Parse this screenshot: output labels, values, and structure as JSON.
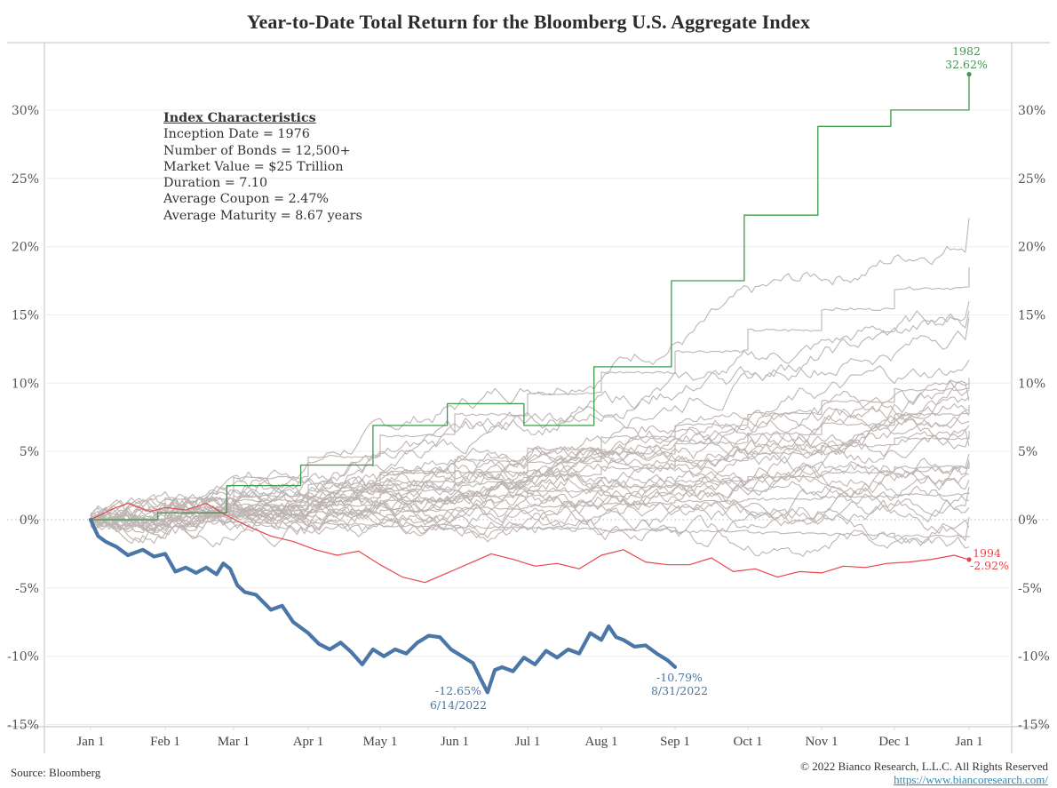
{
  "title": "Year-to-Date Total Return for the Bloomberg U.S. Aggregate Index",
  "info_box": {
    "heading": "Index Characteristics",
    "lines": [
      "Inception Date = 1976",
      "Number of Bonds = 12,500+",
      "Market Value = $25 Trillion",
      "Duration = 7.10",
      "Average Coupon = 2.47%",
      "Average Maturity = 8.67 years"
    ]
  },
  "footer": {
    "source": "Source: Bloomberg",
    "copyright": "© 2022 Bianco Research, L.L.C. All Rights Reserved",
    "url": "https://www.biancoresearch.com/"
  },
  "colors": {
    "highlight_2022": "#4a76a8",
    "year_1982": "#3c9a4a",
    "year_1994": "#e8464a",
    "other_years": "#bdb5b2",
    "grid": "#ececec",
    "axis": "#cccccc"
  },
  "chart_data": {
    "type": "line",
    "title": "Year-to-Date Total Return for the Bloomberg U.S. Aggregate Index",
    "xlabel": "",
    "ylabel": "",
    "x_ticks": [
      "Jan 1",
      "Feb 1",
      "Mar 1",
      "Apr 1",
      "May 1",
      "Jun 1",
      "Jul 1",
      "Aug 1",
      "Sep 1",
      "Oct 1",
      "Nov 1",
      "Dec 1",
      "Jan 1"
    ],
    "x_range_months": [
      0,
      12
    ],
    "y_ticks": [
      "30%",
      "25%",
      "20%",
      "15%",
      "10%",
      "5%",
      "0%",
      "-5%",
      "-10%",
      "-15%"
    ],
    "y_tick_values": [
      30,
      25,
      20,
      15,
      10,
      5,
      0,
      -5,
      -10,
      -15
    ],
    "ylim": [
      -15.5,
      34.5
    ],
    "grid": "horizontal",
    "y_axis_both_sides": true,
    "x_unit": "months since Jan 1",
    "series": [
      {
        "name": "2022",
        "style": "highlight",
        "x": [
          0,
          0.1,
          0.2,
          0.35,
          0.5,
          0.7,
          0.85,
          1.0,
          1.15,
          1.3,
          1.45,
          1.6,
          1.75,
          1.85,
          1.95,
          2.05,
          2.15,
          2.3,
          2.5,
          2.65,
          2.8,
          3.0,
          3.15,
          3.3,
          3.45,
          3.6,
          3.75,
          3.9,
          4.05,
          4.2,
          4.35,
          4.5,
          4.65,
          4.8,
          4.95,
          5.1,
          5.25,
          5.35,
          5.45,
          5.55,
          5.65,
          5.8,
          5.95,
          6.1,
          6.25,
          6.4,
          6.55,
          6.7,
          6.85,
          7.0,
          7.1,
          7.2,
          7.3,
          7.45,
          7.6,
          7.75,
          7.9,
          8.0
        ],
        "values": [
          0,
          -1.2,
          -1.6,
          -2.0,
          -2.6,
          -2.2,
          -2.7,
          -2.5,
          -3.8,
          -3.5,
          -3.9,
          -3.5,
          -4.0,
          -3.2,
          -3.6,
          -4.8,
          -5.3,
          -5.5,
          -6.6,
          -6.3,
          -7.5,
          -8.3,
          -9.1,
          -9.5,
          -9.0,
          -9.7,
          -10.6,
          -9.5,
          -10.0,
          -9.5,
          -9.8,
          -9.0,
          -8.5,
          -8.6,
          -9.5,
          -10.0,
          -10.5,
          -11.6,
          -12.65,
          -11.0,
          -10.8,
          -11.1,
          -10.1,
          -10.6,
          -9.6,
          -10.1,
          -9.5,
          -9.8,
          -8.3,
          -8.8,
          -7.8,
          -8.6,
          -8.8,
          -9.3,
          -9.2,
          -9.8,
          -10.3,
          -10.79
        ]
      },
      {
        "name": "1982",
        "style": "green",
        "x": [
          0,
          0.9,
          0.9,
          1.9,
          1.9,
          2.9,
          2.9,
          3.9,
          3.9,
          4.9,
          4.9,
          5.95,
          5.95,
          6.9,
          6.9,
          7.95,
          7.95,
          8.95,
          8.95,
          9.95,
          9.95,
          10.95,
          10.95,
          12.0,
          12.0
        ],
        "values": [
          0,
          0,
          0.5,
          0.5,
          2.5,
          2.5,
          4.0,
          4.0,
          6.9,
          6.9,
          8.5,
          8.5,
          6.9,
          6.9,
          11.2,
          11.2,
          17.5,
          17.5,
          22.3,
          22.3,
          28.8,
          28.8,
          30.0,
          30.0,
          32.62
        ]
      },
      {
        "name": "1994",
        "style": "red",
        "x": [
          0,
          0.3,
          0.5,
          0.8,
          1.0,
          1.3,
          1.6,
          1.9,
          2.2,
          2.5,
          2.8,
          3.1,
          3.4,
          3.7,
          4.0,
          4.3,
          4.6,
          4.9,
          5.2,
          5.5,
          5.8,
          6.1,
          6.4,
          6.7,
          7.0,
          7.3,
          7.6,
          7.9,
          8.2,
          8.5,
          8.8,
          9.1,
          9.4,
          9.7,
          10.0,
          10.3,
          10.6,
          10.9,
          11.2,
          11.5,
          11.8,
          12.0
        ],
        "values": [
          0,
          0.8,
          1.2,
          0.6,
          0.9,
          0.7,
          1.2,
          0.3,
          -0.5,
          -1.2,
          -1.6,
          -2.2,
          -2.6,
          -2.3,
          -3.3,
          -4.2,
          -4.6,
          -3.9,
          -3.2,
          -2.5,
          -2.9,
          -3.4,
          -3.2,
          -3.6,
          -2.6,
          -2.2,
          -3.1,
          -3.3,
          -3.3,
          -2.8,
          -3.8,
          -3.6,
          -4.2,
          -3.8,
          -3.9,
          -3.4,
          -3.5,
          -3.2,
          -3.1,
          -2.9,
          -2.6,
          -2.92
        ]
      }
    ],
    "background_series_note": "Gray lines: YTD total return paths for other calendar years since 1976; final values range roughly from -2% to 22%.",
    "background_series_end_values": [
      22.1,
      18.5,
      16.0,
      15.3,
      14.8,
      11.7,
      10.4,
      10.0,
      9.5,
      9.0,
      8.7,
      8.4,
      8.0,
      7.6,
      7.2,
      6.9,
      6.5,
      6.1,
      5.4,
      4.8,
      4.4,
      4.2,
      3.9,
      3.3,
      2.9,
      2.4,
      2.0,
      1.4,
      0.9,
      0.2,
      -0.6,
      -1.3,
      -2.0
    ],
    "annotations": [
      {
        "series": "1982",
        "text_year": "1982",
        "text_value": "32.62%"
      },
      {
        "series": "1994",
        "text_year": "1994",
        "text_value": "-2.92%"
      },
      {
        "series": "2022",
        "text_value": "-12.65%",
        "text_date": "6/14/2022"
      },
      {
        "series": "2022",
        "text_value": "-10.79%",
        "text_date": "8/31/2022"
      }
    ]
  }
}
